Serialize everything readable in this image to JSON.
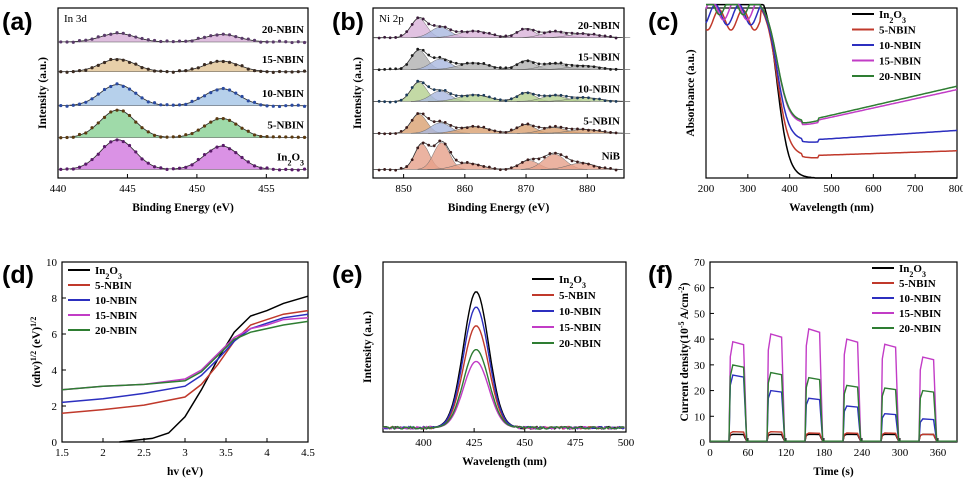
{
  "chart_data": [
    {
      "panel": "(a)",
      "type": "line",
      "title": "In 3d",
      "xlabel": "Binding Energy (eV)",
      "ylabel": "Intensity (a.u.)",
      "xlim": [
        440,
        458
      ],
      "xticks": [
        440,
        445,
        450,
        455
      ],
      "ylim": [
        0,
        160
      ],
      "peaks": [
        444.3,
        451.8
      ],
      "series": [
        {
          "name": "In2O3",
          "label_display": "In₂O₃",
          "baseline": 8,
          "amp": [
            28,
            22
          ],
          "fill": "#d47fe0",
          "dot": "#5a1a6a"
        },
        {
          "name": "5-NBIN",
          "baseline": 38,
          "amp": [
            26,
            18
          ],
          "fill": "#8ed39a",
          "dot": "#5a3a10"
        },
        {
          "name": "10-NBIN",
          "baseline": 68,
          "amp": [
            20,
            16
          ],
          "fill": "#a9c8e8",
          "dot": "#2a4aa0"
        },
        {
          "name": "15-NBIN",
          "baseline": 100,
          "amp": [
            12,
            10
          ],
          "fill": "#e3c79a",
          "dot": "#3a2a20"
        },
        {
          "name": "20-NBIN",
          "baseline": 128,
          "amp": [
            8,
            7
          ],
          "fill": "#d9b3d9",
          "dot": "#5a3a6a"
        }
      ]
    },
    {
      "panel": "(b)",
      "type": "line",
      "title": "Ni 2p",
      "xlabel": "Binding Energy (eV)",
      "ylabel": "Intensity (a.u.)",
      "xlim": [
        845,
        886
      ],
      "xticks": [
        850,
        860,
        870,
        880
      ],
      "ylim": [
        0,
        160
      ],
      "series": [
        {
          "name": "NiB",
          "baseline": 8,
          "fill": "#e6a08a",
          "dot": "#3a1a1a"
        },
        {
          "name": "5-NBIN",
          "baseline": 42,
          "fill": "#d9a070",
          "dot": "#3a1a1a"
        },
        {
          "name": "10-NBIN",
          "baseline": 72,
          "fill": "#b4cf8e",
          "dot": "#1a3a5a"
        },
        {
          "name": "15-NBIN",
          "baseline": 102,
          "fill": "#b0b0b0",
          "dot": "#1a1a1a"
        },
        {
          "name": "20-NBIN",
          "baseline": 132,
          "fill": "#d9b3d9",
          "dot": "#3a1a3a"
        }
      ]
    },
    {
      "panel": "(c)",
      "type": "line",
      "xlabel": "Wavelength (nm)",
      "ylabel": "Absorbance (a.u.)",
      "xlim": [
        200,
        800
      ],
      "xticks": [
        200,
        300,
        400,
        500,
        600,
        700,
        800
      ],
      "ylim": [
        0,
        1
      ],
      "legend": "top-right",
      "series": [
        {
          "name": "In2O3",
          "label_display": "In₂O₃",
          "color": "#000000",
          "tail_start": 0.0,
          "tail_end": 0.0
        },
        {
          "name": "5-NBIN",
          "color": "#c0392b",
          "tail_start": 0.13,
          "tail_end": 0.16
        },
        {
          "name": "10-NBIN",
          "color": "#2c2fbf",
          "tail_start": 0.22,
          "tail_end": 0.28
        },
        {
          "name": "15-NBIN",
          "color": "#c23cc6",
          "tail_start": 0.32,
          "tail_end": 0.52
        },
        {
          "name": "20-NBIN",
          "color": "#2e7d32",
          "tail_start": 0.33,
          "tail_end": 0.54
        }
      ]
    },
    {
      "panel": "(d)",
      "type": "line",
      "xlabel": "hv (eV)",
      "ylabel": "(αhv)^1/2 (eV)^1/2",
      "xlim": [
        1.5,
        4.5
      ],
      "xticks": [
        1.5,
        2.0,
        2.5,
        3.0,
        3.5,
        4.0,
        4.5
      ],
      "ylim": [
        0,
        10
      ],
      "yticks": [
        0,
        2,
        4,
        6,
        8,
        10
      ],
      "legend": "top-left",
      "series": [
        {
          "name": "In2O3",
          "label_display": "In₂O₃",
          "color": "#000000",
          "x": [
            2.2,
            2.6,
            2.8,
            3.0,
            3.2,
            3.4,
            3.6,
            3.8,
            4.0,
            4.2,
            4.5
          ],
          "y": [
            0,
            0.2,
            0.5,
            1.4,
            2.9,
            4.6,
            6.1,
            7.0,
            7.3,
            7.7,
            8.1
          ]
        },
        {
          "name": "5-NBIN",
          "color": "#c0392b",
          "x": [
            1.5,
            2.0,
            2.5,
            3.0,
            3.2,
            3.4,
            3.6,
            3.8,
            4.0,
            4.2,
            4.5
          ],
          "y": [
            1.6,
            1.8,
            2.05,
            2.5,
            3.2,
            4.3,
            5.6,
            6.5,
            6.8,
            7.1,
            7.3
          ]
        },
        {
          "name": "10-NBIN",
          "color": "#2c2fbf",
          "x": [
            1.5,
            2.0,
            2.5,
            3.0,
            3.2,
            3.4,
            3.6,
            3.8,
            4.0,
            4.2,
            4.5
          ],
          "y": [
            2.2,
            2.4,
            2.7,
            3.1,
            3.7,
            4.6,
            5.6,
            6.3,
            6.6,
            6.9,
            7.1
          ]
        },
        {
          "name": "15-NBIN",
          "color": "#c23cc6",
          "x": [
            1.5,
            2.0,
            2.5,
            3.0,
            3.2,
            3.4,
            3.6,
            3.8,
            4.0,
            4.2,
            4.5
          ],
          "y": [
            2.9,
            3.1,
            3.2,
            3.5,
            4.0,
            4.9,
            5.8,
            6.3,
            6.5,
            6.8,
            6.9
          ]
        },
        {
          "name": "20-NBIN",
          "color": "#2e7d32",
          "x": [
            1.5,
            2.0,
            2.5,
            3.0,
            3.2,
            3.4,
            3.6,
            3.8,
            4.0,
            4.2,
            4.5
          ],
          "y": [
            2.9,
            3.1,
            3.2,
            3.4,
            3.9,
            4.8,
            5.7,
            6.1,
            6.3,
            6.5,
            6.7
          ]
        }
      ]
    },
    {
      "panel": "(e)",
      "type": "line",
      "xlabel": "Wavelength (nm)",
      "ylabel": "Intensity (a.u.)",
      "xlim": [
        380,
        500
      ],
      "xticks": [
        400,
        425,
        450,
        475,
        500
      ],
      "ylim": [
        0,
        100
      ],
      "legend": "top-right",
      "peak_center": 426,
      "series": [
        {
          "name": "In2O3",
          "label_display": "In₂O₃",
          "color": "#000000",
          "peak": 80
        },
        {
          "name": "5-NBIN",
          "color": "#c0392b",
          "peak": 60
        },
        {
          "name": "10-NBIN",
          "color": "#2c2fbf",
          "peak": 71
        },
        {
          "name": "15-NBIN",
          "color": "#c23cc6",
          "peak": 39
        },
        {
          "name": "20-NBIN",
          "color": "#2e7d32",
          "peak": 46
        }
      ]
    },
    {
      "panel": "(f)",
      "type": "line",
      "xlabel": "Time (s)",
      "ylabel": "Current density(10^-5 A/cm^-2)",
      "xlim": [
        0,
        390
      ],
      "xticks": [
        0,
        60,
        120,
        180,
        240,
        300,
        360
      ],
      "ylim": [
        0,
        70
      ],
      "yticks": [
        0,
        10,
        20,
        30,
        40,
        50,
        60,
        70
      ],
      "legend": "top-right",
      "on_periods": [
        [
          30,
          55
        ],
        [
          90,
          115
        ],
        [
          150,
          175
        ],
        [
          210,
          235
        ],
        [
          270,
          295
        ],
        [
          330,
          355
        ]
      ],
      "series": [
        {
          "name": "In2O3",
          "label_display": "In₂O₃",
          "color": "#000000",
          "on": [
            3,
            3,
            3,
            3,
            3,
            3
          ]
        },
        {
          "name": "5-NBIN",
          "color": "#c0392b",
          "on": [
            4,
            4,
            3.5,
            3.5,
            3.5,
            3
          ]
        },
        {
          "name": "10-NBIN",
          "color": "#2c2fbf",
          "on": [
            26,
            20,
            17,
            14,
            11,
            9
          ]
        },
        {
          "name": "15-NBIN",
          "color": "#c23cc6",
          "on": [
            39,
            42,
            44,
            40,
            38,
            33
          ]
        },
        {
          "name": "20-NBIN",
          "color": "#2e7d32",
          "on": [
            30,
            27,
            25,
            22,
            21,
            20
          ]
        }
      ]
    }
  ]
}
